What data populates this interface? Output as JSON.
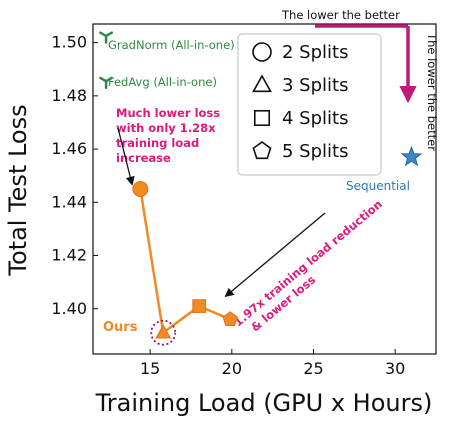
{
  "chart_data": {
    "type": "scatter",
    "xlabel": "Training Load (GPU x Hours)",
    "ylabel": "Total Test Loss",
    "xlim": [
      11.5,
      32.5
    ],
    "ylim": [
      1.383,
      1.507
    ],
    "xticks": [
      15,
      20,
      25,
      30
    ],
    "yticks": [
      1.4,
      1.42,
      1.44,
      1.46,
      1.48,
      1.5
    ],
    "ytick_labels": [
      "1.40",
      "1.42",
      "1.44",
      "1.46",
      "1.48",
      "1.50"
    ],
    "grid": false,
    "legend_position": "top-right",
    "legend": [
      {
        "label": "2 Splits",
        "marker": "circle"
      },
      {
        "label": "3 Splits",
        "marker": "triangle"
      },
      {
        "label": "4 Splits",
        "marker": "square"
      },
      {
        "label": "5 Splits",
        "marker": "pentagon"
      }
    ],
    "series": [
      {
        "name": "Ours",
        "color": "#f08a24",
        "line": true,
        "points": [
          {
            "x": 14.4,
            "y": 1.445,
            "marker": "circle"
          },
          {
            "x": 15.8,
            "y": 1.391,
            "marker": "triangle"
          },
          {
            "x": 18.0,
            "y": 1.401,
            "marker": "square"
          },
          {
            "x": 19.9,
            "y": 1.396,
            "marker": "pentagon"
          }
        ]
      }
    ],
    "baselines": [
      {
        "name": "GradNorm (All-in-one)",
        "color": "#2e8b3e",
        "marker": "tri_down",
        "x": 12.3,
        "y": 1.5025
      },
      {
        "name": "FedAvg (All-in-one)",
        "color": "#2e8b3e",
        "marker": "tri_down",
        "x": 12.3,
        "y": 1.4855
      },
      {
        "name": "Sequential",
        "color": "#3d85c6",
        "marker": "star",
        "x": 31.0,
        "y": 1.457
      }
    ],
    "annotations": {
      "top_label": "The lower the better",
      "side_label": "The lower the better",
      "lower_loss_lines": [
        "Much lower loss",
        "with only 1.28x",
        "training load",
        "increase"
      ],
      "reduction_lines": [
        "1.97x training load reduction",
        "& lower loss"
      ],
      "ours_label": "Ours",
      "sequential_label": "Sequential"
    }
  }
}
